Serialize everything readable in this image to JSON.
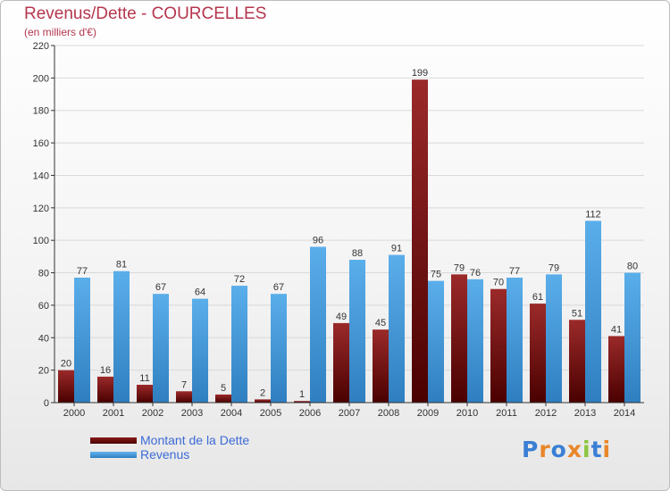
{
  "title": "Revenus/Dette - COURCELLES",
  "subtitle": "(en milliers d'€)",
  "logo": "Proxiti",
  "colors": {
    "dette": "#6e1010",
    "revenus": "#4ea2e0",
    "title": "#b5364d",
    "legend_text": "#3c6ad6"
  },
  "chart_data": {
    "type": "bar",
    "title": "Revenus/Dette - COURCELLES",
    "subtitle": "(en milliers d'€)",
    "categories": [
      "2000",
      "2001",
      "2002",
      "2003",
      "2004",
      "2005",
      "2006",
      "2007",
      "2008",
      "2009",
      "2010",
      "2011",
      "2012",
      "2013",
      "2014"
    ],
    "series": [
      {
        "name": "Montant de la Dette",
        "values": [
          20,
          16,
          11,
          7,
          5,
          2,
          1,
          49,
          45,
          199,
          79,
          70,
          61,
          51,
          41
        ]
      },
      {
        "name": "Revenus",
        "values": [
          77,
          81,
          67,
          64,
          72,
          67,
          96,
          88,
          91,
          75,
          76,
          77,
          79,
          112,
          80
        ]
      }
    ],
    "ylim": [
      0,
      220
    ],
    "yticks": [
      0,
      20,
      40,
      60,
      80,
      100,
      120,
      140,
      160,
      180,
      200,
      220
    ],
    "grid": true,
    "legend_position": "bottom-left"
  }
}
